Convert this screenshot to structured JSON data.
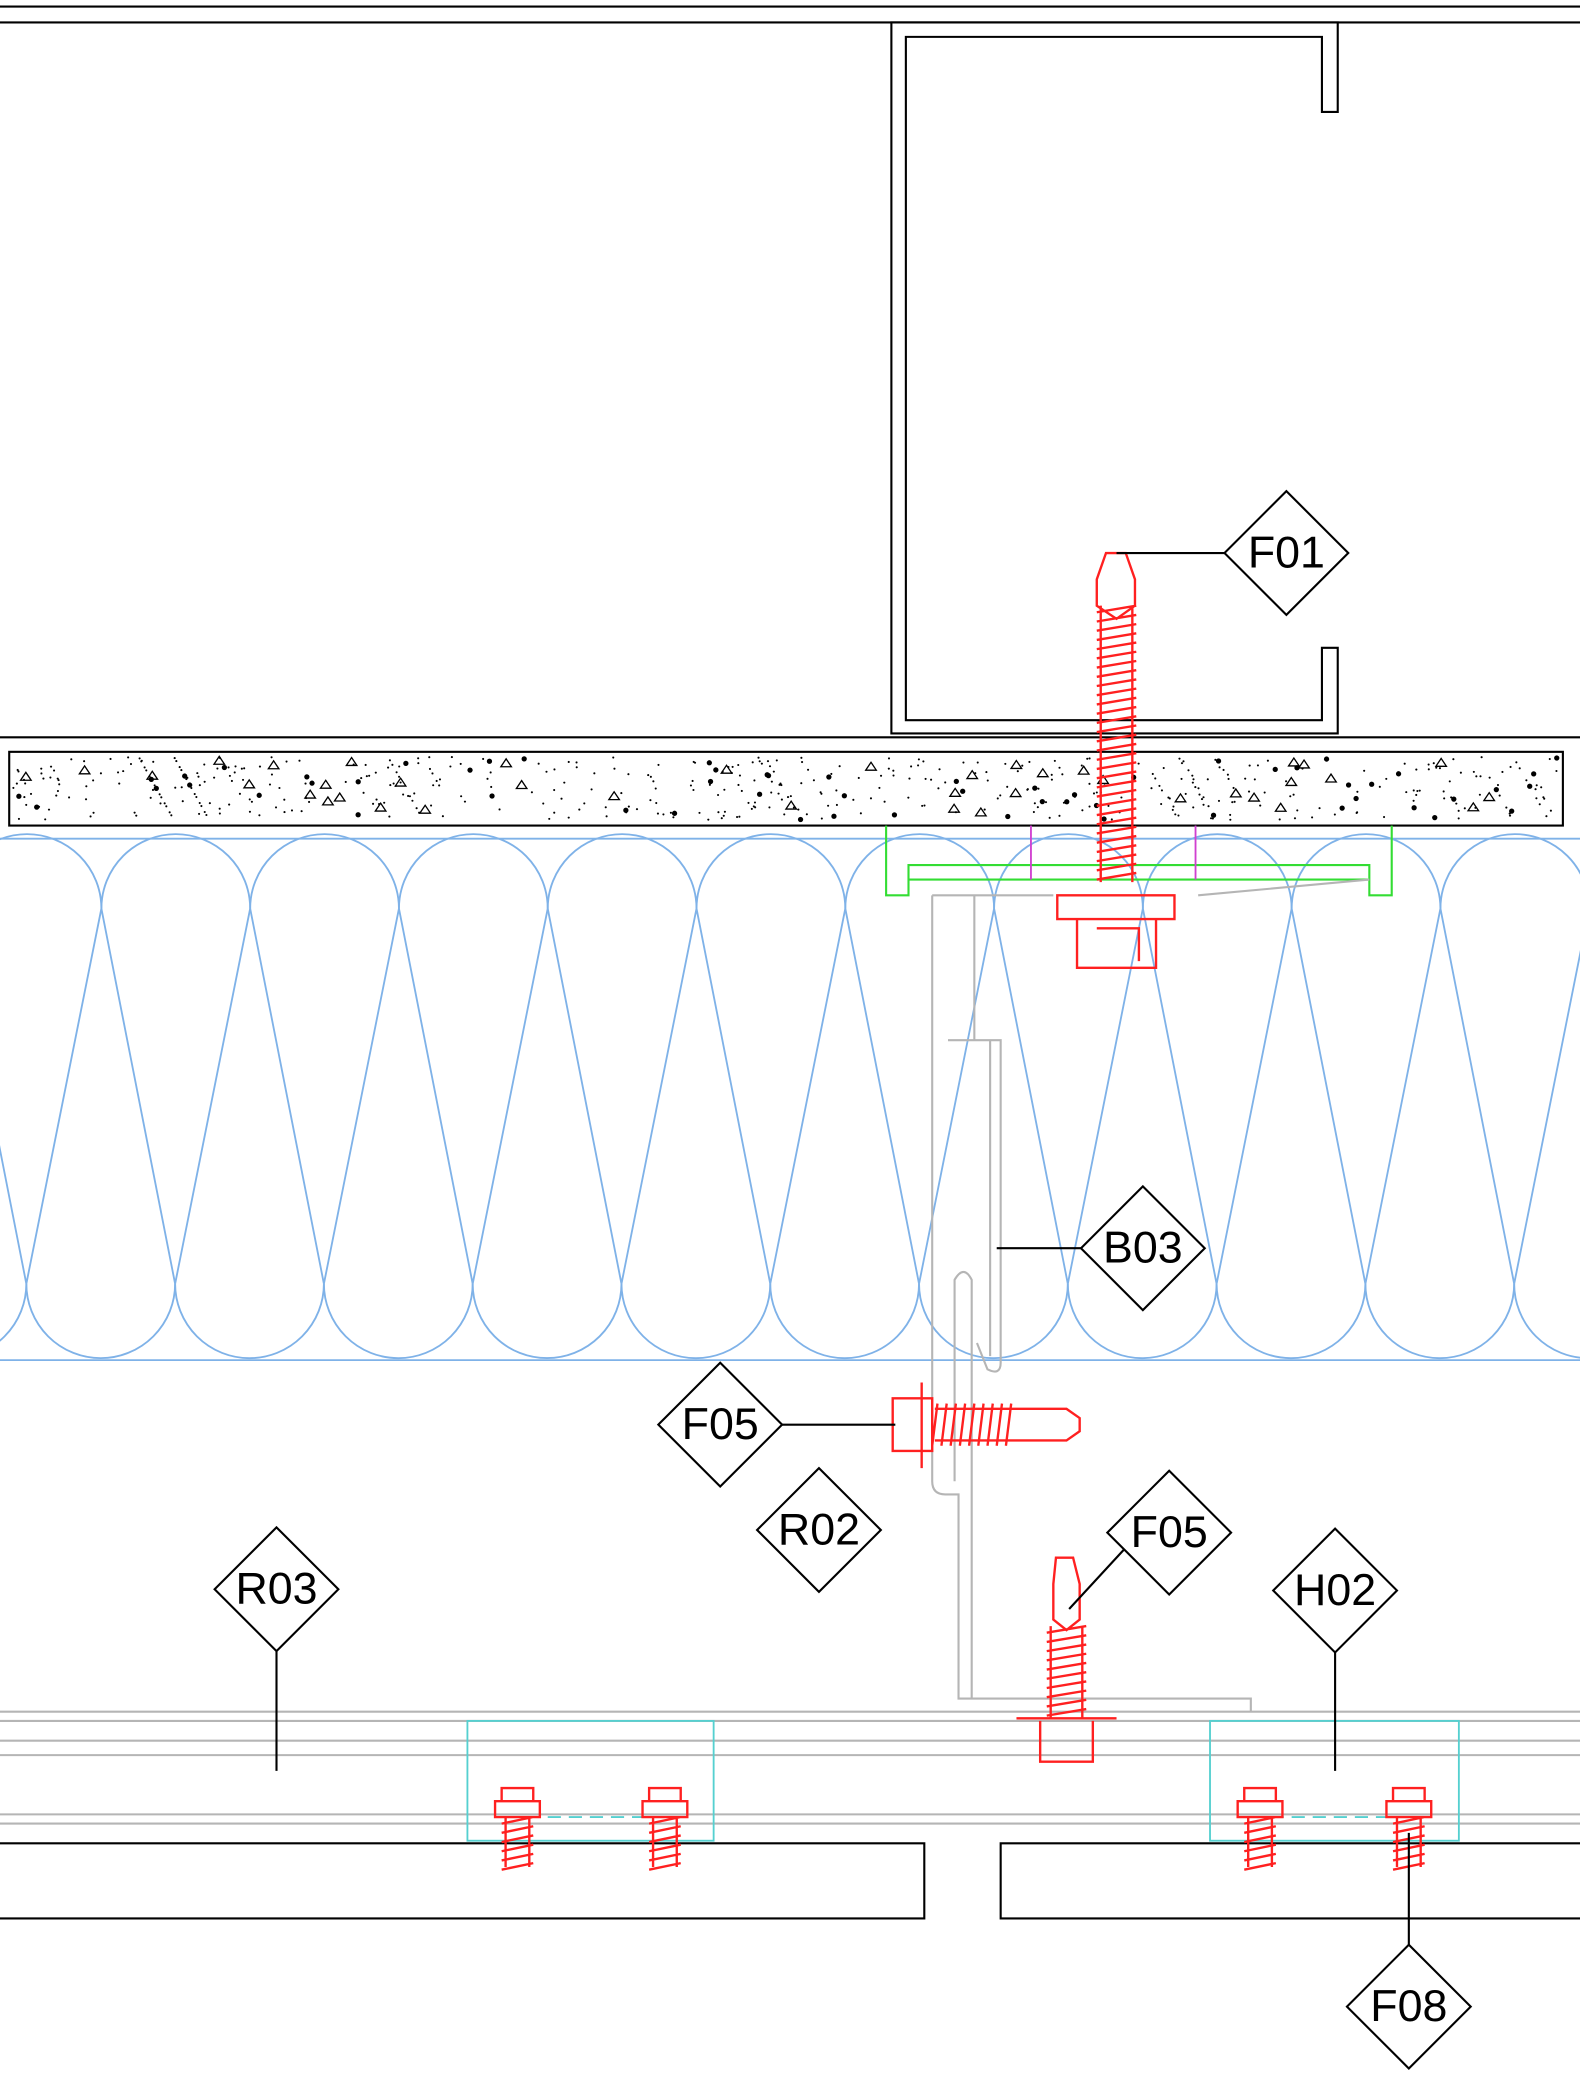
{
  "callouts": [
    "F01",
    "B03",
    "F05",
    "R02",
    "F05",
    "R03",
    "H02",
    "F08"
  ]
}
